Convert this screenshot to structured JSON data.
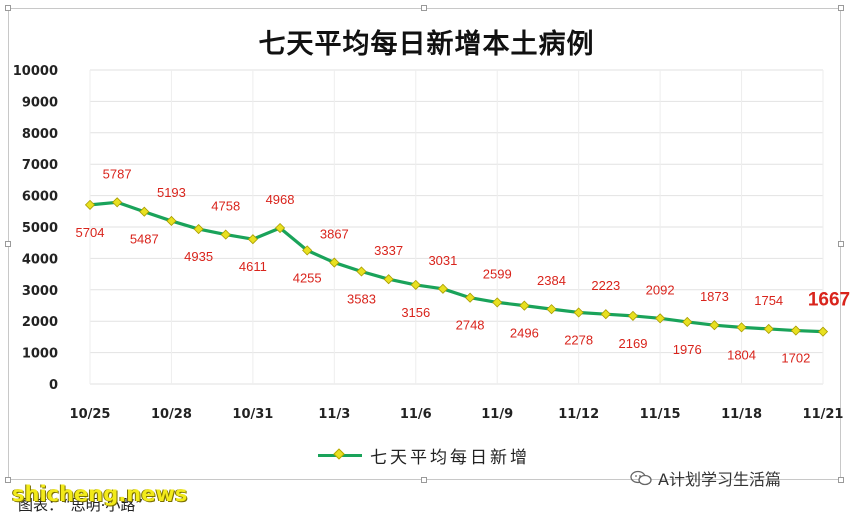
{
  "title": "七天平均每日新增本土病例",
  "legend": {
    "label": "七天平均每日新增"
  },
  "watermark_brand": "A计划学习生活篇",
  "site_mark": "shicheng.news",
  "caption": "图表：“思明·小路”",
  "colors": {
    "line": "#1aa35a",
    "marker": "#e8e020",
    "label": "#d9241c"
  },
  "chart_data": {
    "type": "line",
    "title": "七天平均每日新增本土病例",
    "xlabel": "",
    "ylabel": "",
    "ylim": [
      0,
      10000
    ],
    "yticks": [
      "0",
      "1000",
      "2000",
      "3000",
      "4000",
      "5000",
      "6000",
      "7000",
      "8000",
      "9000",
      "10000"
    ],
    "x_tick_labels": [
      "10/25",
      "10/28",
      "10/31",
      "11/3",
      "11/6",
      "11/9",
      "11/12",
      "11/15",
      "11/18",
      "11/21"
    ],
    "grid": true,
    "legend_position": "bottom",
    "x": [
      "10/25",
      "10/26",
      "10/27",
      "10/28",
      "10/29",
      "10/30",
      "10/31",
      "11/1",
      "11/2",
      "11/3",
      "11/4",
      "11/5",
      "11/6",
      "11/7",
      "11/8",
      "11/9",
      "11/10",
      "11/11",
      "11/12",
      "11/13",
      "11/14",
      "11/15",
      "11/16",
      "11/17",
      "11/18",
      "11/19",
      "11/20",
      "11/21"
    ],
    "series": [
      {
        "name": "七天平均每日新增",
        "values": [
          5704,
          5787,
          5487,
          5193,
          4935,
          4758,
          4611,
          4968,
          4255,
          3867,
          3583,
          3337,
          3156,
          3031,
          2748,
          2599,
          2496,
          2384,
          2278,
          2223,
          2169,
          2092,
          1976,
          1873,
          1804,
          1754,
          1702,
          1667
        ]
      }
    ],
    "data_labels": [
      {
        "index": 0,
        "text": "5704",
        "pos": "below"
      },
      {
        "index": 1,
        "text": "5787",
        "pos": "above"
      },
      {
        "index": 2,
        "text": "5487",
        "pos": "below"
      },
      {
        "index": 3,
        "text": "5193",
        "pos": "above"
      },
      {
        "index": 4,
        "text": "4935",
        "pos": "below"
      },
      {
        "index": 5,
        "text": "4758",
        "pos": "above"
      },
      {
        "index": 6,
        "text": "4611",
        "pos": "below"
      },
      {
        "index": 7,
        "text": "4968",
        "pos": "above"
      },
      {
        "index": 8,
        "text": "4255",
        "pos": "below"
      },
      {
        "index": 9,
        "text": "3867",
        "pos": "above"
      },
      {
        "index": 10,
        "text": "3583",
        "pos": "below"
      },
      {
        "index": 11,
        "text": "3337",
        "pos": "above"
      },
      {
        "index": 12,
        "text": "3156",
        "pos": "below"
      },
      {
        "index": 13,
        "text": "3031",
        "pos": "above"
      },
      {
        "index": 14,
        "text": "2748",
        "pos": "below"
      },
      {
        "index": 15,
        "text": "2599",
        "pos": "above"
      },
      {
        "index": 16,
        "text": "2496",
        "pos": "below"
      },
      {
        "index": 17,
        "text": "2384",
        "pos": "above"
      },
      {
        "index": 18,
        "text": "2278",
        "pos": "below"
      },
      {
        "index": 19,
        "text": "2223",
        "pos": "above"
      },
      {
        "index": 20,
        "text": "2169",
        "pos": "below"
      },
      {
        "index": 21,
        "text": "2092",
        "pos": "above"
      },
      {
        "index": 22,
        "text": "1976",
        "pos": "below"
      },
      {
        "index": 23,
        "text": "1873",
        "pos": "above"
      },
      {
        "index": 24,
        "text": "1804",
        "pos": "below"
      },
      {
        "index": 25,
        "text": "1754",
        "pos": "above"
      },
      {
        "index": 26,
        "text": "1702",
        "pos": "below"
      },
      {
        "index": 27,
        "text": "1667",
        "pos": "above",
        "highlight": true
      }
    ]
  }
}
